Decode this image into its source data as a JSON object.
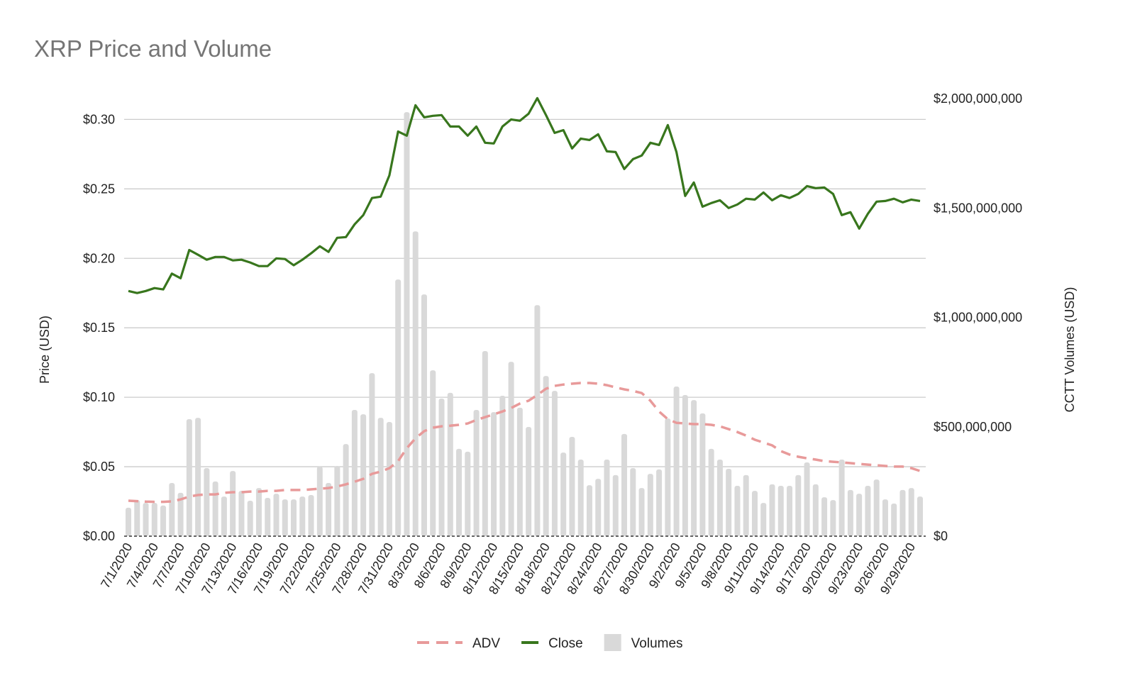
{
  "chart_data": {
    "type": "bar+line",
    "title": "XRP Price and Volume",
    "ylabel_left": "Price (USD)",
    "ylabel_right": "CCTT Volumes (USD)",
    "left_ticks": [
      "$0.00",
      "$0.05",
      "$0.10",
      "$0.15",
      "$0.20",
      "$0.25",
      "$0.30"
    ],
    "left_tick_values": [
      0,
      0.05,
      0.1,
      0.15,
      0.2,
      0.25,
      0.3
    ],
    "right_ticks": [
      "$0",
      "$500,000,000",
      "$1,000,000,000",
      "$1,500,000,000",
      "$2,000,000,000"
    ],
    "right_tick_values": [
      0,
      500000000,
      1000000000,
      1500000000,
      2000000000
    ],
    "ylim_left": [
      0,
      0.315
    ],
    "ylim_right": [
      0,
      2000000000
    ],
    "grid": true,
    "legend_position": "bottom",
    "legend": [
      {
        "name": "ADV",
        "style": "dashed-line",
        "color": "#e89a9a"
      },
      {
        "name": "Close",
        "style": "line",
        "color": "#38761d"
      },
      {
        "name": "Volumes",
        "style": "bar",
        "color": "#d9d9d9"
      }
    ],
    "x_label_every": 3,
    "categories": [
      "7/1/2020",
      "7/2/2020",
      "7/3/2020",
      "7/4/2020",
      "7/5/2020",
      "7/6/2020",
      "7/7/2020",
      "7/8/2020",
      "7/9/2020",
      "7/10/2020",
      "7/11/2020",
      "7/12/2020",
      "7/13/2020",
      "7/14/2020",
      "7/15/2020",
      "7/16/2020",
      "7/17/2020",
      "7/18/2020",
      "7/19/2020",
      "7/20/2020",
      "7/21/2020",
      "7/22/2020",
      "7/23/2020",
      "7/24/2020",
      "7/25/2020",
      "7/26/2020",
      "7/27/2020",
      "7/28/2020",
      "7/29/2020",
      "7/30/2020",
      "7/31/2020",
      "8/1/2020",
      "8/2/2020",
      "8/3/2020",
      "8/4/2020",
      "8/5/2020",
      "8/6/2020",
      "8/7/2020",
      "8/8/2020",
      "8/9/2020",
      "8/10/2020",
      "8/11/2020",
      "8/12/2020",
      "8/13/2020",
      "8/14/2020",
      "8/15/2020",
      "8/16/2020",
      "8/17/2020",
      "8/18/2020",
      "8/19/2020",
      "8/20/2020",
      "8/21/2020",
      "8/22/2020",
      "8/23/2020",
      "8/24/2020",
      "8/25/2020",
      "8/26/2020",
      "8/27/2020",
      "8/28/2020",
      "8/29/2020",
      "8/30/2020",
      "8/31/2020",
      "9/1/2020",
      "9/2/2020",
      "9/3/2020",
      "9/4/2020",
      "9/5/2020",
      "9/6/2020",
      "9/7/2020",
      "9/8/2020",
      "9/9/2020",
      "9/10/2020",
      "9/11/2020",
      "9/12/2020",
      "9/13/2020",
      "9/14/2020",
      "9/15/2020",
      "9/16/2020",
      "9/17/2020",
      "9/18/2020",
      "9/19/2020",
      "9/20/2020",
      "9/21/2020",
      "9/22/2020",
      "9/23/2020",
      "9/24/2020",
      "9/25/2020",
      "9/26/2020",
      "9/27/2020",
      "9/28/2020",
      "9/29/2020",
      "9/30/2020"
    ],
    "series": [
      {
        "name": "Volumes",
        "axis": "right",
        "values": [
          130000000,
          165000000,
          152000000,
          152000000,
          140000000,
          243000000,
          198000000,
          535000000,
          541000000,
          311000000,
          250000000,
          181000000,
          298000000,
          207000000,
          162000000,
          220000000,
          175000000,
          194000000,
          168000000,
          168000000,
          181000000,
          188000000,
          318000000,
          243000000,
          321000000,
          421000000,
          577000000,
          557000000,
          745000000,
          541000000,
          522000000,
          1173000000,
          1938000000,
          1393000000,
          1105000000,
          758000000,
          629000000,
          655000000,
          399000000,
          386000000,
          577000000,
          846000000,
          567000000,
          642000000,
          797000000,
          587000000,
          499000000,
          1056000000,
          732000000,
          664000000,
          382000000,
          454000000,
          350000000,
          233000000,
          262000000,
          350000000,
          279000000,
          467000000,
          311000000,
          220000000,
          285000000,
          305000000,
          538000000,
          684000000,
          645000000,
          622000000,
          561000000,
          399000000,
          350000000,
          308000000,
          230000000,
          279000000,
          207000000,
          152000000,
          237000000,
          230000000,
          230000000,
          279000000,
          337000000,
          237000000,
          178000000,
          165000000,
          350000000,
          211000000,
          194000000,
          230000000,
          259000000,
          168000000,
          149000000,
          211000000,
          220000000,
          181000000
        ]
      },
      {
        "name": "Close",
        "axis": "left",
        "values": [
          0.1765,
          0.175,
          0.1765,
          0.1786,
          0.1776,
          0.189,
          0.1857,
          0.206,
          0.2026,
          0.199,
          0.201,
          0.201,
          0.1985,
          0.199,
          0.197,
          0.1944,
          0.1944,
          0.2,
          0.1995,
          0.195,
          0.199,
          0.2036,
          0.2087,
          0.2046,
          0.2148,
          0.2153,
          0.2245,
          0.2311,
          0.2434,
          0.2444,
          0.2597,
          0.2913,
          0.2883,
          0.3102,
          0.3015,
          0.3026,
          0.3031,
          0.2949,
          0.2949,
          0.2883,
          0.2949,
          0.2832,
          0.2827,
          0.2949,
          0.3,
          0.299,
          0.3041,
          0.3153,
          0.3031,
          0.2903,
          0.2923,
          0.2791,
          0.2862,
          0.2852,
          0.2893,
          0.277,
          0.2765,
          0.2643,
          0.2714,
          0.274,
          0.2832,
          0.2816,
          0.2959,
          0.2765,
          0.2449,
          0.2546,
          0.2372,
          0.2398,
          0.2418,
          0.2362,
          0.2388,
          0.2429,
          0.2423,
          0.2474,
          0.2418,
          0.2454,
          0.2434,
          0.2464,
          0.252,
          0.2505,
          0.251,
          0.2464,
          0.2311,
          0.2332,
          0.2214,
          0.2321,
          0.2408,
          0.2413,
          0.2429,
          0.2403,
          0.2423,
          0.2413
        ]
      },
      {
        "name": "ADV",
        "axis": "right",
        "values": [
          162000000,
          160000000,
          158000000,
          157000000,
          157000000,
          159000000,
          168000000,
          181000000,
          188000000,
          191000000,
          191000000,
          198000000,
          201000000,
          201000000,
          204000000,
          204000000,
          207000000,
          207000000,
          211000000,
          211000000,
          211000000,
          214000000,
          217000000,
          220000000,
          227000000,
          237000000,
          249000000,
          262000000,
          285000000,
          295000000,
          311000000,
          343000000,
          402000000,
          447000000,
          480000000,
          496000000,
          502000000,
          505000000,
          509000000,
          515000000,
          531000000,
          544000000,
          557000000,
          570000000,
          586000000,
          606000000,
          619000000,
          645000000,
          674000000,
          687000000,
          693000000,
          697000000,
          700000000,
          700000000,
          697000000,
          690000000,
          680000000,
          671000000,
          664000000,
          654000000,
          619000000,
          570000000,
          535000000,
          518000000,
          515000000,
          512000000,
          512000000,
          509000000,
          502000000,
          489000000,
          476000000,
          460000000,
          441000000,
          428000000,
          415000000,
          389000000,
          373000000,
          363000000,
          356000000,
          350000000,
          343000000,
          340000000,
          337000000,
          334000000,
          330000000,
          327000000,
          324000000,
          321000000,
          318000000,
          318000000,
          311000000,
          298000000
        ]
      }
    ]
  }
}
